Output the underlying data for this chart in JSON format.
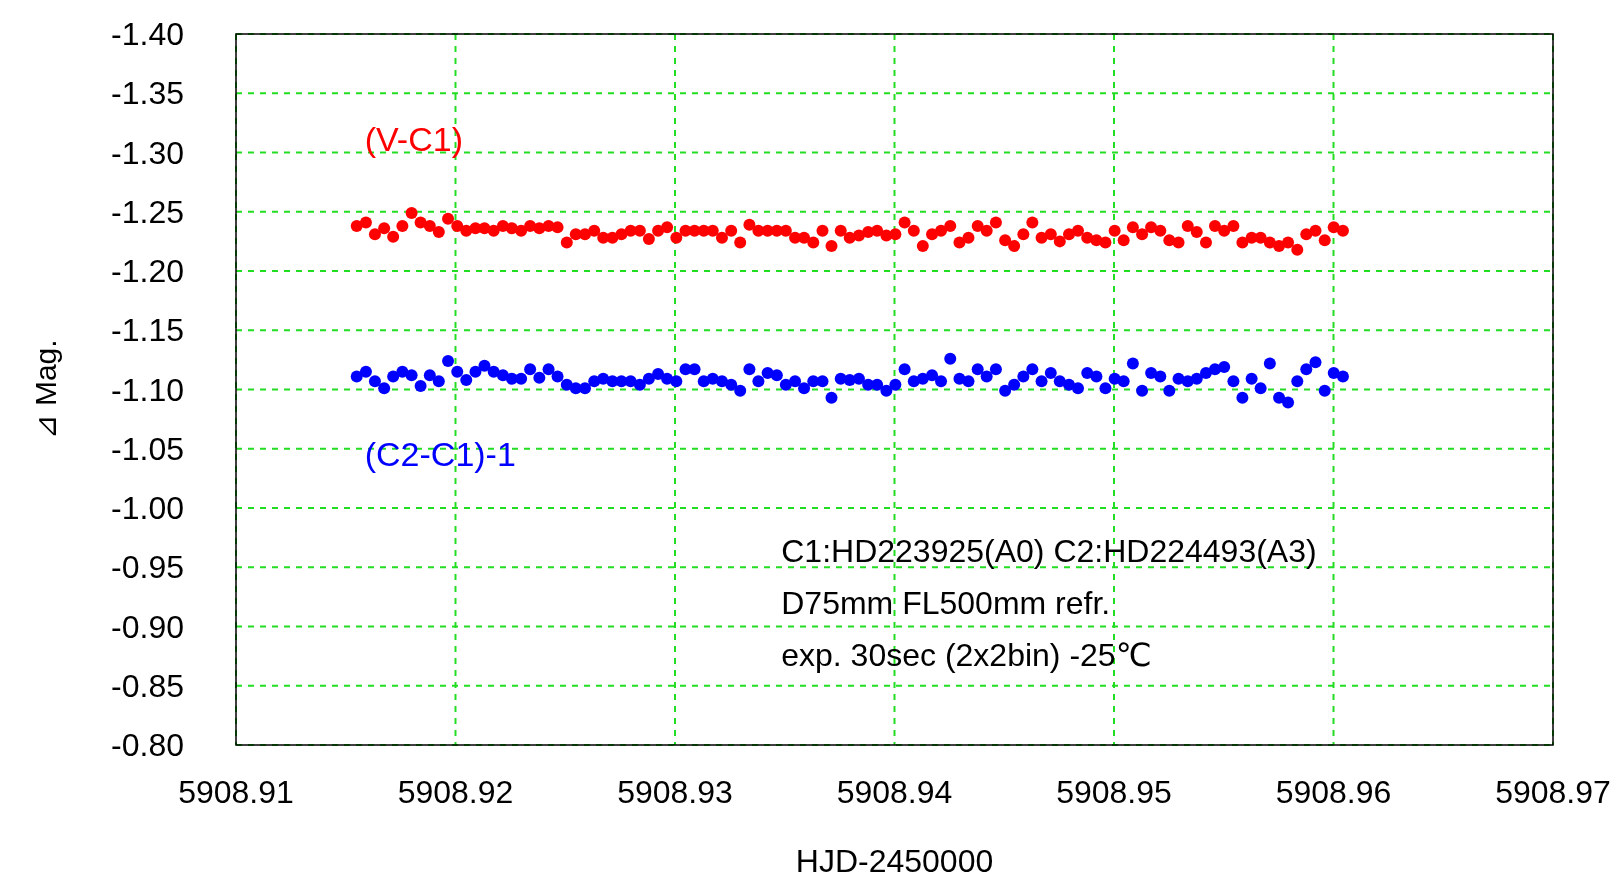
{
  "chart_data": {
    "type": "scatter",
    "xlabel": "HJD-2450000",
    "ylabel": "⊿ Mag.",
    "xlim": [
      5908.91,
      5908.97
    ],
    "xticks": [
      5908.91,
      5908.92,
      5908.93,
      5908.94,
      5908.95,
      5908.96,
      5908.97
    ],
    "ylim": [
      -0.8,
      -1.4
    ],
    "yticks": [
      {
        "value": -1.4,
        "label": "-1.40"
      },
      {
        "value": -1.35,
        "label": "-1.35"
      },
      {
        "value": -1.3,
        "label": "-1.30"
      },
      {
        "value": -1.25,
        "label": "-1.25"
      },
      {
        "value": -1.2,
        "label": "-1.20"
      },
      {
        "value": -1.15,
        "label": "-1.15"
      },
      {
        "value": -1.1,
        "label": "-1.10"
      },
      {
        "value": -1.05,
        "label": "-1.05"
      },
      {
        "value": -1.0,
        "label": "-1.00"
      },
      {
        "value": -0.95,
        "label": "-0.95"
      },
      {
        "value": -0.9,
        "label": "-0.90"
      },
      {
        "value": -0.85,
        "label": "-0.85"
      },
      {
        "value": -0.8,
        "label": "-0.80"
      }
    ],
    "grid": true,
    "marker": "circle",
    "x": [
      5908.9155,
      5908.91592,
      5908.91633,
      5908.91675,
      5908.91716,
      5908.91758,
      5908.918,
      5908.91841,
      5908.91883,
      5908.91924,
      5908.91966,
      5908.92008,
      5908.92049,
      5908.92091,
      5908.92132,
      5908.92174,
      5908.92216,
      5908.92257,
      5908.92299,
      5908.9234,
      5908.92382,
      5908.92424,
      5908.92465,
      5908.92507,
      5908.92548,
      5908.9259,
      5908.92632,
      5908.92673,
      5908.92715,
      5908.92756,
      5908.92798,
      5908.9284,
      5908.92881,
      5908.92923,
      5908.92964,
      5908.93006,
      5908.93048,
      5908.93089,
      5908.93131,
      5908.93172,
      5908.93214,
      5908.93256,
      5908.93297,
      5908.93339,
      5908.9338,
      5908.93422,
      5908.93464,
      5908.93505,
      5908.93547,
      5908.93588,
      5908.9363,
      5908.93672,
      5908.93713,
      5908.93755,
      5908.93796,
      5908.93838,
      5908.9388,
      5908.93921,
      5908.93963,
      5908.94004,
      5908.94046,
      5908.94088,
      5908.94129,
      5908.94171,
      5908.94212,
      5908.94254,
      5908.94296,
      5908.94337,
      5908.94379,
      5908.9442,
      5908.94462,
      5908.94504,
      5908.94545,
      5908.94587,
      5908.94628,
      5908.9467,
      5908.94712,
      5908.94753,
      5908.94795,
      5908.94836,
      5908.94878,
      5908.9492,
      5908.94961,
      5908.95003,
      5908.95044,
      5908.95086,
      5908.95128,
      5908.95169,
      5908.95211,
      5908.95252,
      5908.95294,
      5908.95336,
      5908.95377,
      5908.95419,
      5908.9546,
      5908.95502,
      5908.95544,
      5908.95585,
      5908.95627,
      5908.95668,
      5908.9571,
      5908.95752,
      5908.95793,
      5908.95835,
      5908.95876,
      5908.95918,
      5908.9596,
      5908.96001,
      5908.96043
    ],
    "series": [
      {
        "name": "(V-C1)",
        "color": "#ff0000",
        "values": [
          -1.238,
          -1.241,
          -1.231,
          -1.236,
          -1.229,
          -1.238,
          -1.249,
          -1.241,
          -1.238,
          -1.233,
          -1.244,
          -1.238,
          -1.234,
          -1.236,
          -1.236,
          -1.234,
          -1.238,
          -1.236,
          -1.234,
          -1.238,
          -1.236,
          -1.238,
          -1.237,
          -1.224,
          -1.231,
          -1.231,
          -1.234,
          -1.228,
          -1.228,
          -1.231,
          -1.234,
          -1.234,
          -1.227,
          -1.234,
          -1.237,
          -1.228,
          -1.234,
          -1.234,
          -1.234,
          -1.234,
          -1.228,
          -1.234,
          -1.224,
          -1.239,
          -1.234,
          -1.234,
          -1.234,
          -1.234,
          -1.228,
          -1.228,
          -1.224,
          -1.234,
          -1.221,
          -1.234,
          -1.228,
          -1.23,
          -1.233,
          -1.234,
          -1.23,
          -1.231,
          -1.241,
          -1.234,
          -1.221,
          -1.231,
          -1.234,
          -1.238,
          -1.224,
          -1.228,
          -1.238,
          -1.234,
          -1.241,
          -1.226,
          -1.221,
          -1.231,
          -1.241,
          -1.228,
          -1.231,
          -1.225,
          -1.231,
          -1.234,
          -1.228,
          -1.226,
          -1.224,
          -1.234,
          -1.226,
          -1.237,
          -1.231,
          -1.237,
          -1.234,
          -1.226,
          -1.224,
          -1.238,
          -1.233,
          -1.224,
          -1.238,
          -1.234,
          -1.238,
          -1.224,
          -1.228,
          -1.228,
          -1.224,
          -1.221,
          -1.224,
          -1.218,
          -1.231,
          -1.234,
          -1.226,
          -1.237,
          -1.234
        ]
      },
      {
        "name": "(C2-C1)-1",
        "color": "#0000ff",
        "values": [
          -1.111,
          -1.115,
          -1.107,
          -1.101,
          -1.111,
          -1.115,
          -1.112,
          -1.103,
          -1.112,
          -1.107,
          -1.124,
          -1.115,
          -1.108,
          -1.115,
          -1.12,
          -1.115,
          -1.112,
          -1.109,
          -1.109,
          -1.117,
          -1.11,
          -1.117,
          -1.111,
          -1.104,
          -1.101,
          -1.101,
          -1.107,
          -1.109,
          -1.107,
          -1.107,
          -1.107,
          -1.104,
          -1.109,
          -1.113,
          -1.109,
          -1.107,
          -1.117,
          -1.117,
          -1.107,
          -1.109,
          -1.107,
          -1.104,
          -1.099,
          -1.117,
          -1.107,
          -1.114,
          -1.112,
          -1.104,
          -1.107,
          -1.101,
          -1.107,
          -1.107,
          -1.093,
          -1.109,
          -1.108,
          -1.109,
          -1.104,
          -1.104,
          -1.099,
          -1.104,
          -1.117,
          -1.107,
          -1.109,
          -1.112,
          -1.107,
          -1.126,
          -1.109,
          -1.107,
          -1.117,
          -1.111,
          -1.117,
          -1.099,
          -1.104,
          -1.111,
          -1.117,
          -1.107,
          -1.114,
          -1.107,
          -1.104,
          -1.101,
          -1.114,
          -1.111,
          -1.101,
          -1.109,
          -1.107,
          -1.122,
          -1.099,
          -1.114,
          -1.111,
          -1.099,
          -1.109,
          -1.107,
          -1.109,
          -1.114,
          -1.117,
          -1.119,
          -1.107,
          -1.093,
          -1.109,
          -1.101,
          -1.122,
          -1.093,
          -1.089,
          -1.107,
          -1.117,
          -1.123,
          -1.099,
          -1.114,
          -1.111
        ]
      }
    ],
    "annotations": [
      "C1:HD223925(A0)  C2:HD224493(A3)",
      "D75mm  FL500mm  refr.",
      "exp. 30sec  (2x2bin)  -25℃"
    ]
  }
}
